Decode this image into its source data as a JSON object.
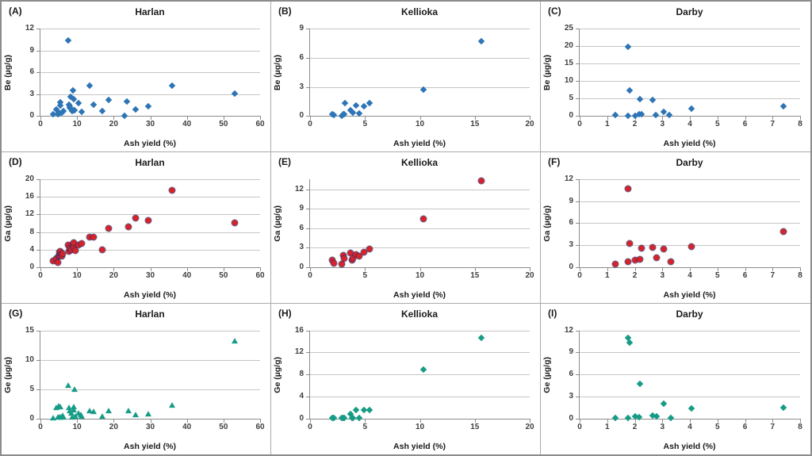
{
  "figure": {
    "xlabel": "Ash yield (%)",
    "colors": {
      "blue": "#2e75b6",
      "red": "#d8222a",
      "teal": "#169c86",
      "grid": "#c6c6c6",
      "axis": "#8c8c8c",
      "tick_label": "#3f3f3f",
      "cell_border": "#ababab",
      "outer_border": "#8c8c8c"
    }
  },
  "chart_data": [
    {
      "id": "A",
      "letter": "(A)",
      "type": "scatter",
      "title": "Harlan",
      "xlabel": "Ash yield (%)",
      "ylabel": "Be (µg/g)",
      "xlim": [
        0,
        60
      ],
      "ylim": [
        0,
        12
      ],
      "xticks": [
        0,
        10,
        20,
        30,
        40,
        50,
        60
      ],
      "yticks": [
        0,
        3,
        6,
        9,
        12
      ],
      "marker": "diamond",
      "color": "#2e75b6",
      "points": [
        [
          3.5,
          0.3
        ],
        [
          4.3,
          0.9
        ],
        [
          4.8,
          0.25
        ],
        [
          5.0,
          0.5
        ],
        [
          5.2,
          0.35
        ],
        [
          5.4,
          1.4
        ],
        [
          5.5,
          1.85
        ],
        [
          5.8,
          0.5
        ],
        [
          6.0,
          0.6
        ],
        [
          6.3,
          0.65
        ],
        [
          7.5,
          10.4
        ],
        [
          7.8,
          1.55
        ],
        [
          8.0,
          1.35
        ],
        [
          8.1,
          1.15
        ],
        [
          8.2,
          2.65
        ],
        [
          8.6,
          0.65
        ],
        [
          8.8,
          3.55
        ],
        [
          9.0,
          2.3
        ],
        [
          9.0,
          0.8
        ],
        [
          9.3,
          0.85
        ],
        [
          10.5,
          1.75
        ],
        [
          11.2,
          0.6
        ],
        [
          13.5,
          4.2
        ],
        [
          14.5,
          1.6
        ],
        [
          17.0,
          0.65
        ],
        [
          18.7,
          2.2
        ],
        [
          23.0,
          0.05
        ],
        [
          23.6,
          2.0
        ],
        [
          26.0,
          0.95
        ],
        [
          29.5,
          1.3
        ],
        [
          36.0,
          4.15
        ],
        [
          53.0,
          3.05
        ]
      ]
    },
    {
      "id": "B",
      "letter": "(B)",
      "type": "scatter",
      "title": "Kellioka",
      "xlabel": "Ash yield (%)",
      "ylabel": "Be (µg/g)",
      "xlim": [
        0,
        20
      ],
      "ylim": [
        0,
        9
      ],
      "xticks": [
        0,
        5,
        10,
        15,
        20
      ],
      "yticks": [
        0,
        3,
        6,
        9
      ],
      "marker": "diamond",
      "color": "#2e75b6",
      "points": [
        [
          2.0,
          0.15
        ],
        [
          2.2,
          0.1
        ],
        [
          2.9,
          0.05
        ],
        [
          3.0,
          0.15
        ],
        [
          3.1,
          0.2
        ],
        [
          3.2,
          1.3
        ],
        [
          3.7,
          0.6
        ],
        [
          3.8,
          0.45
        ],
        [
          3.9,
          0.35
        ],
        [
          4.2,
          1.05
        ],
        [
          4.5,
          0.25
        ],
        [
          4.9,
          1.0
        ],
        [
          5.4,
          1.3
        ],
        [
          10.3,
          2.7
        ],
        [
          15.6,
          7.7
        ]
      ]
    },
    {
      "id": "C",
      "letter": "(C)",
      "type": "scatter",
      "title": "Darby",
      "xlabel": "Ash yield (%)",
      "ylabel": "Be (µg/g)",
      "xlim": [
        0,
        8
      ],
      "ylim": [
        0,
        25
      ],
      "xticks": [
        0,
        1,
        2,
        3,
        4,
        5,
        6,
        7,
        8
      ],
      "yticks": [
        0,
        5,
        10,
        15,
        20,
        25
      ],
      "marker": "diamond",
      "color": "#2e75b6",
      "points": [
        [
          1.3,
          0.4
        ],
        [
          1.75,
          19.7
        ],
        [
          1.8,
          7.4
        ],
        [
          1.75,
          0.15
        ],
        [
          2.0,
          0.1
        ],
        [
          2.2,
          4.8
        ],
        [
          2.15,
          0.5
        ],
        [
          2.25,
          0.6
        ],
        [
          2.65,
          4.7
        ],
        [
          2.75,
          0.25
        ],
        [
          3.05,
          1.2
        ],
        [
          3.25,
          0.2
        ],
        [
          4.05,
          2.1
        ],
        [
          7.4,
          2.9
        ]
      ]
    },
    {
      "id": "D",
      "letter": "(D)",
      "type": "scatter",
      "title": "Harlan",
      "xlabel": "Ash yield (%)",
      "ylabel": "Ga (µg/g)",
      "xlim": [
        0,
        60
      ],
      "ylim": [
        0,
        20
      ],
      "xticks": [
        0,
        10,
        20,
        30,
        40,
        50,
        60
      ],
      "yticks": [
        0,
        4,
        8,
        12,
        16,
        20
      ],
      "marker": "circle",
      "color": "#d8222a",
      "points": [
        [
          3.5,
          1.3
        ],
        [
          4.4,
          1.9
        ],
        [
          4.8,
          1.0
        ],
        [
          5.0,
          2.4
        ],
        [
          5.2,
          2.6
        ],
        [
          5.3,
          3.4
        ],
        [
          5.5,
          3.6
        ],
        [
          5.6,
          2.9
        ],
        [
          5.8,
          2.5
        ],
        [
          6.0,
          3.0
        ],
        [
          7.5,
          5.1
        ],
        [
          7.8,
          3.6
        ],
        [
          8.0,
          4.3
        ],
        [
          8.4,
          3.9
        ],
        [
          8.8,
          5.2
        ],
        [
          9.0,
          4.5
        ],
        [
          9.2,
          5.5
        ],
        [
          9.5,
          3.8
        ],
        [
          10.5,
          5.0
        ],
        [
          11.2,
          5.3
        ],
        [
          13.5,
          6.8
        ],
        [
          14.5,
          6.85
        ],
        [
          17.0,
          4.0
        ],
        [
          18.7,
          8.9
        ],
        [
          24.0,
          9.2
        ],
        [
          26.0,
          11.2
        ],
        [
          29.5,
          10.7
        ],
        [
          36.0,
          17.5
        ],
        [
          53.0,
          10.1
        ]
      ]
    },
    {
      "id": "E",
      "letter": "(E)",
      "type": "scatter",
      "title": "Kellioka",
      "xlabel": "Ash yield (%)",
      "ylabel": "Ga (µg/g)",
      "xlim": [
        0,
        20
      ],
      "ylim": [
        0,
        13.5
      ],
      "xticks": [
        0,
        5,
        10,
        15,
        20
      ],
      "yticks": [
        0,
        3,
        6,
        9,
        12
      ],
      "marker": "circle",
      "color": "#d8222a",
      "points": [
        [
          2.0,
          1.1
        ],
        [
          2.2,
          0.6
        ],
        [
          2.9,
          0.5
        ],
        [
          3.0,
          1.85
        ],
        [
          3.1,
          1.35
        ],
        [
          3.7,
          2.2
        ],
        [
          3.8,
          1.1
        ],
        [
          3.9,
          1.3
        ],
        [
          4.2,
          1.95
        ],
        [
          4.5,
          1.7
        ],
        [
          4.9,
          2.3
        ],
        [
          5.4,
          2.75
        ],
        [
          10.3,
          7.4
        ],
        [
          15.6,
          13.3
        ]
      ]
    },
    {
      "id": "F",
      "letter": "(F)",
      "type": "scatter",
      "title": "Darby",
      "xlabel": "Ash yield (%)",
      "ylabel": "Ga (µg/g)",
      "xlim": [
        0,
        8
      ],
      "ylim": [
        0,
        12
      ],
      "xticks": [
        0,
        1,
        2,
        3,
        4,
        5,
        6,
        7,
        8
      ],
      "yticks": [
        0,
        3,
        6,
        9,
        12
      ],
      "marker": "circle",
      "color": "#d8222a",
      "points": [
        [
          1.3,
          0.4
        ],
        [
          1.75,
          10.7
        ],
        [
          1.8,
          3.2
        ],
        [
          1.75,
          0.7
        ],
        [
          2.0,
          0.9
        ],
        [
          2.2,
          1.1
        ],
        [
          2.25,
          2.6
        ],
        [
          2.65,
          2.65
        ],
        [
          2.8,
          1.25
        ],
        [
          3.05,
          2.45
        ],
        [
          3.3,
          0.7
        ],
        [
          4.05,
          2.75
        ],
        [
          7.4,
          4.85
        ]
      ]
    },
    {
      "id": "G",
      "letter": "(G)",
      "type": "scatter",
      "title": "Harlan",
      "xlabel": "Ash yield (%)",
      "ylabel": "Ge (µg/g)",
      "xlim": [
        0,
        60
      ],
      "ylim": [
        0,
        15
      ],
      "xticks": [
        0,
        10,
        20,
        30,
        40,
        50,
        60
      ],
      "yticks": [
        0,
        5,
        10,
        15
      ],
      "marker": "triangle",
      "color": "#169c86",
      "points": [
        [
          3.5,
          0.1
        ],
        [
          4.4,
          1.9
        ],
        [
          4.8,
          0.3
        ],
        [
          5.0,
          2.1
        ],
        [
          5.2,
          0.3
        ],
        [
          5.4,
          0.25
        ],
        [
          5.5,
          2.0
        ],
        [
          5.8,
          0.3
        ],
        [
          6.0,
          0.55
        ],
        [
          6.2,
          0.3
        ],
        [
          7.5,
          5.6
        ],
        [
          7.8,
          1.9
        ],
        [
          8.0,
          1.4
        ],
        [
          8.4,
          0.9
        ],
        [
          8.6,
          0.3
        ],
        [
          9.0,
          1.5
        ],
        [
          9.2,
          2.0
        ],
        [
          9.3,
          5.05
        ],
        [
          9.5,
          0.35
        ],
        [
          10.5,
          1.0
        ],
        [
          11.0,
          0.7
        ],
        [
          11.3,
          0.35
        ],
        [
          13.5,
          1.3
        ],
        [
          14.5,
          1.25
        ],
        [
          17.0,
          0.4
        ],
        [
          18.7,
          1.4
        ],
        [
          24.0,
          1.4
        ],
        [
          26.0,
          0.7
        ],
        [
          29.5,
          0.8
        ],
        [
          36.0,
          2.35
        ],
        [
          53.0,
          13.2
        ]
      ]
    },
    {
      "id": "H",
      "letter": "(H)",
      "type": "scatter",
      "title": "Kellioka",
      "xlabel": "Ash yield (%)",
      "ylabel": "Ge (µg/g)",
      "xlim": [
        0,
        20
      ],
      "ylim": [
        0,
        16
      ],
      "xticks": [
        0,
        5,
        10,
        15,
        20
      ],
      "yticks": [
        0,
        4,
        8,
        12,
        16
      ],
      "marker": "diamond",
      "color": "#169c86",
      "points": [
        [
          2.0,
          0.1
        ],
        [
          2.2,
          0.1
        ],
        [
          2.9,
          0.1
        ],
        [
          3.0,
          0.15
        ],
        [
          3.1,
          0.2
        ],
        [
          3.7,
          0.85
        ],
        [
          3.8,
          0.1
        ],
        [
          3.9,
          0.2
        ],
        [
          4.2,
          1.6
        ],
        [
          4.5,
          0.15
        ],
        [
          4.9,
          1.6
        ],
        [
          5.4,
          1.6
        ],
        [
          10.3,
          8.9
        ],
        [
          15.6,
          14.7
        ]
      ]
    },
    {
      "id": "I",
      "letter": "(I)",
      "type": "scatter",
      "title": "Darby",
      "xlabel": "Ash yield (%)",
      "ylabel": "Ge (µg/g)",
      "xlim": [
        0,
        8
      ],
      "ylim": [
        0,
        12
      ],
      "xticks": [
        0,
        1,
        2,
        3,
        4,
        5,
        6,
        7,
        8
      ],
      "yticks": [
        0,
        3,
        6,
        9,
        12
      ],
      "marker": "diamond",
      "color": "#169c86",
      "points": [
        [
          1.3,
          0.1
        ],
        [
          1.75,
          11.0
        ],
        [
          1.8,
          10.3
        ],
        [
          1.75,
          0.1
        ],
        [
          2.0,
          0.3
        ],
        [
          2.15,
          0.2
        ],
        [
          2.2,
          4.7
        ],
        [
          2.65,
          0.45
        ],
        [
          2.8,
          0.3
        ],
        [
          3.05,
          2.0
        ],
        [
          3.3,
          0.15
        ],
        [
          4.05,
          1.45
        ],
        [
          7.4,
          1.55
        ]
      ]
    }
  ]
}
